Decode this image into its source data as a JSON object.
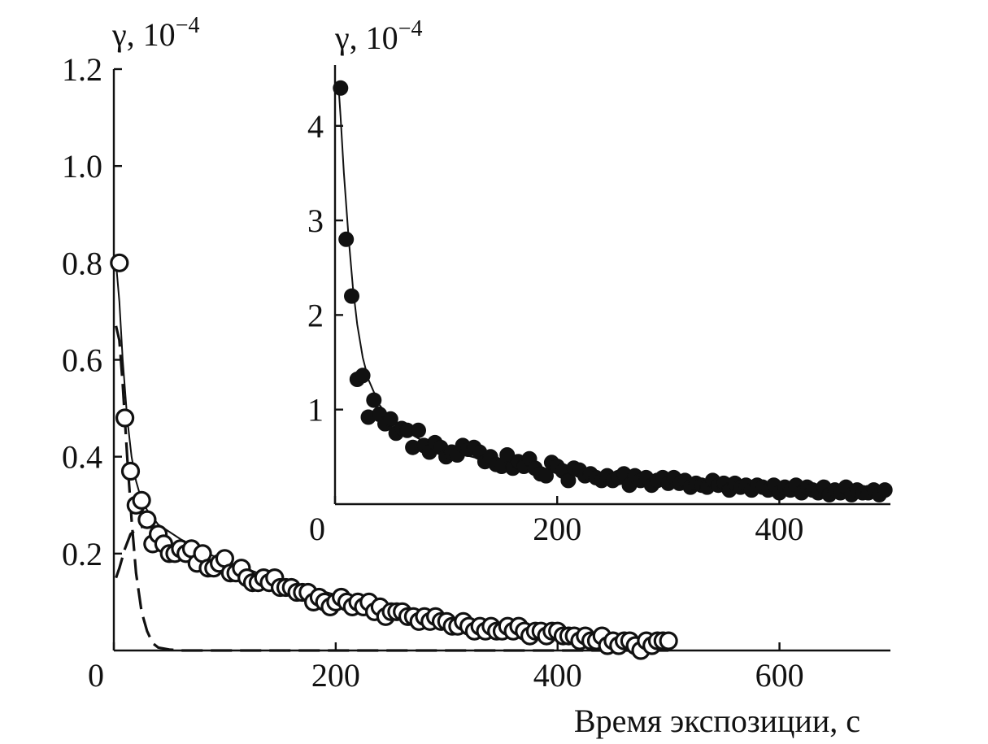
{
  "chart_data": [
    {
      "type": "scatter",
      "panel": "main",
      "ylabel": "γ, 10",
      "ylabel_exp": "−4",
      "xlabel": "Время экспозиции, с",
      "xlim": [
        0,
        700
      ],
      "ylim": [
        0,
        1.2
      ],
      "x_ticks": [
        0,
        200,
        400,
        600
      ],
      "x_tick_labels": [
        "0",
        "200",
        "400",
        "600"
      ],
      "y_ticks": [
        0.2,
        0.4,
        0.6,
        0.8,
        1.0,
        1.2
      ],
      "y_tick_labels": [
        "0.2",
        "0.4",
        "0.6",
        "0.8",
        "1.0",
        "1.2"
      ],
      "grid": false,
      "series": [
        {
          "marker": "open-circle",
          "x": [
            5,
            10,
            15,
            20,
            25,
            30,
            35,
            40,
            45,
            50,
            55,
            60,
            65,
            70,
            75,
            80,
            85,
            90,
            95,
            100,
            105,
            110,
            115,
            120,
            125,
            130,
            135,
            140,
            145,
            150,
            155,
            160,
            165,
            170,
            175,
            180,
            185,
            190,
            195,
            200,
            205,
            210,
            215,
            220,
            225,
            230,
            235,
            240,
            245,
            250,
            255,
            260,
            265,
            270,
            275,
            280,
            285,
            290,
            295,
            300,
            305,
            310,
            315,
            320,
            325,
            330,
            335,
            340,
            345,
            350,
            355,
            360,
            365,
            370,
            375,
            380,
            385,
            390,
            395,
            400,
            405,
            410,
            415,
            420,
            425,
            430,
            435,
            440,
            445,
            450,
            455,
            460,
            465,
            470,
            475,
            480,
            485,
            490,
            495,
            500
          ],
          "y": [
            0.8,
            0.48,
            0.37,
            0.3,
            0.31,
            0.27,
            0.22,
            0.24,
            0.22,
            0.2,
            0.2,
            0.21,
            0.2,
            0.21,
            0.18,
            0.2,
            0.17,
            0.17,
            0.18,
            0.19,
            0.16,
            0.16,
            0.17,
            0.15,
            0.14,
            0.14,
            0.15,
            0.14,
            0.15,
            0.13,
            0.13,
            0.13,
            0.12,
            0.12,
            0.12,
            0.1,
            0.11,
            0.1,
            0.09,
            0.1,
            0.11,
            0.1,
            0.09,
            0.1,
            0.09,
            0.1,
            0.08,
            0.09,
            0.07,
            0.08,
            0.08,
            0.08,
            0.07,
            0.07,
            0.06,
            0.07,
            0.06,
            0.07,
            0.06,
            0.06,
            0.05,
            0.05,
            0.06,
            0.05,
            0.04,
            0.05,
            0.04,
            0.05,
            0.04,
            0.04,
            0.05,
            0.04,
            0.05,
            0.04,
            0.03,
            0.04,
            0.04,
            0.03,
            0.04,
            0.04,
            0.03,
            0.03,
            0.03,
            0.02,
            0.03,
            0.02,
            0.02,
            0.03,
            0.01,
            0.02,
            0.01,
            0.02,
            0.02,
            0.01,
            0.0,
            0.02,
            0.01,
            0.02,
            0.02,
            0.02
          ]
        }
      ],
      "fit_curve": {
        "style": "solid",
        "x": [
          2,
          5,
          8,
          12,
          16,
          20,
          25,
          30,
          40,
          50,
          60,
          80,
          100,
          130,
          160,
          200,
          240,
          280,
          320,
          360,
          400,
          440,
          480,
          505
        ],
        "y": [
          0.8,
          0.72,
          0.6,
          0.48,
          0.4,
          0.35,
          0.31,
          0.29,
          0.26,
          0.245,
          0.23,
          0.205,
          0.185,
          0.16,
          0.14,
          0.115,
          0.095,
          0.075,
          0.06,
          0.045,
          0.035,
          0.025,
          0.018,
          0.015
        ]
      },
      "component_fast": {
        "style": "dashed",
        "x": [
          2,
          5,
          8,
          12,
          16,
          20,
          25,
          30,
          35,
          40,
          50,
          60,
          80,
          120,
          200,
          300,
          400,
          500
        ],
        "y": [
          0.67,
          0.64,
          0.55,
          0.4,
          0.27,
          0.16,
          0.08,
          0.04,
          0.015,
          0.006,
          0.002,
          0.0,
          0.0,
          0.0,
          0.0,
          0.0,
          0.0,
          0.0
        ]
      },
      "component_slow": {
        "style": "dashed",
        "x": [
          2,
          5,
          10,
          15,
          20,
          25,
          30
        ],
        "y": [
          0.15,
          0.17,
          0.21,
          0.24,
          0.25,
          0.255,
          0.26
        ]
      }
    },
    {
      "type": "scatter",
      "panel": "inset",
      "ylabel": "γ, 10",
      "ylabel_exp": "−4",
      "xlim": [
        0,
        500
      ],
      "ylim": [
        0,
        4.6
      ],
      "x_ticks": [
        0,
        200,
        400
      ],
      "x_tick_labels": [
        "0",
        "200",
        "400"
      ],
      "y_ticks": [
        1,
        2,
        3,
        4
      ],
      "y_tick_labels": [
        "1",
        "2",
        "3",
        "4"
      ],
      "grid": false,
      "series": [
        {
          "marker": "filled-circle",
          "x": [
            5,
            10,
            15,
            20,
            25,
            30,
            35,
            40,
            45,
            50,
            55,
            60,
            65,
            70,
            75,
            80,
            85,
            90,
            95,
            100,
            105,
            110,
            115,
            120,
            125,
            130,
            135,
            140,
            145,
            150,
            155,
            160,
            165,
            170,
            175,
            180,
            185,
            190,
            195,
            200,
            205,
            210,
            215,
            220,
            225,
            230,
            235,
            240,
            245,
            250,
            255,
            260,
            265,
            270,
            275,
            280,
            285,
            290,
            295,
            300,
            305,
            310,
            315,
            320,
            325,
            330,
            335,
            340,
            345,
            350,
            355,
            360,
            365,
            370,
            375,
            380,
            385,
            390,
            395,
            400,
            405,
            410,
            415,
            420,
            425,
            430,
            435,
            440,
            445,
            450,
            455,
            460,
            465,
            470,
            475,
            480,
            485,
            490,
            495
          ],
          "y": [
            4.4,
            2.8,
            2.2,
            1.32,
            1.36,
            0.92,
            1.1,
            0.95,
            0.85,
            0.9,
            0.75,
            0.8,
            0.78,
            0.6,
            0.78,
            0.62,
            0.55,
            0.65,
            0.6,
            0.5,
            0.55,
            0.52,
            0.62,
            0.58,
            0.6,
            0.55,
            0.45,
            0.5,
            0.42,
            0.4,
            0.52,
            0.38,
            0.45,
            0.4,
            0.48,
            0.38,
            0.32,
            0.3,
            0.44,
            0.4,
            0.35,
            0.25,
            0.38,
            0.36,
            0.3,
            0.32,
            0.28,
            0.25,
            0.3,
            0.25,
            0.28,
            0.32,
            0.2,
            0.3,
            0.25,
            0.28,
            0.2,
            0.25,
            0.28,
            0.22,
            0.28,
            0.22,
            0.25,
            0.18,
            0.22,
            0.2,
            0.18,
            0.25,
            0.2,
            0.22,
            0.15,
            0.22,
            0.18,
            0.2,
            0.15,
            0.2,
            0.18,
            0.15,
            0.2,
            0.12,
            0.18,
            0.15,
            0.2,
            0.12,
            0.18,
            0.15,
            0.12,
            0.18,
            0.1,
            0.15,
            0.12,
            0.18,
            0.1,
            0.15,
            0.12,
            0.12,
            0.15,
            0.1,
            0.15
          ]
        }
      ],
      "fit_curve": {
        "style": "solid",
        "x": [
          3,
          5,
          8,
          12,
          16,
          20,
          25,
          30,
          40,
          50,
          60,
          80,
          100,
          130,
          160,
          200,
          250,
          300,
          350,
          400,
          450,
          500
        ],
        "y": [
          4.45,
          4.1,
          3.5,
          2.85,
          2.3,
          1.9,
          1.55,
          1.32,
          1.05,
          0.9,
          0.8,
          0.66,
          0.57,
          0.48,
          0.42,
          0.36,
          0.3,
          0.26,
          0.22,
          0.19,
          0.17,
          0.15
        ]
      }
    }
  ]
}
